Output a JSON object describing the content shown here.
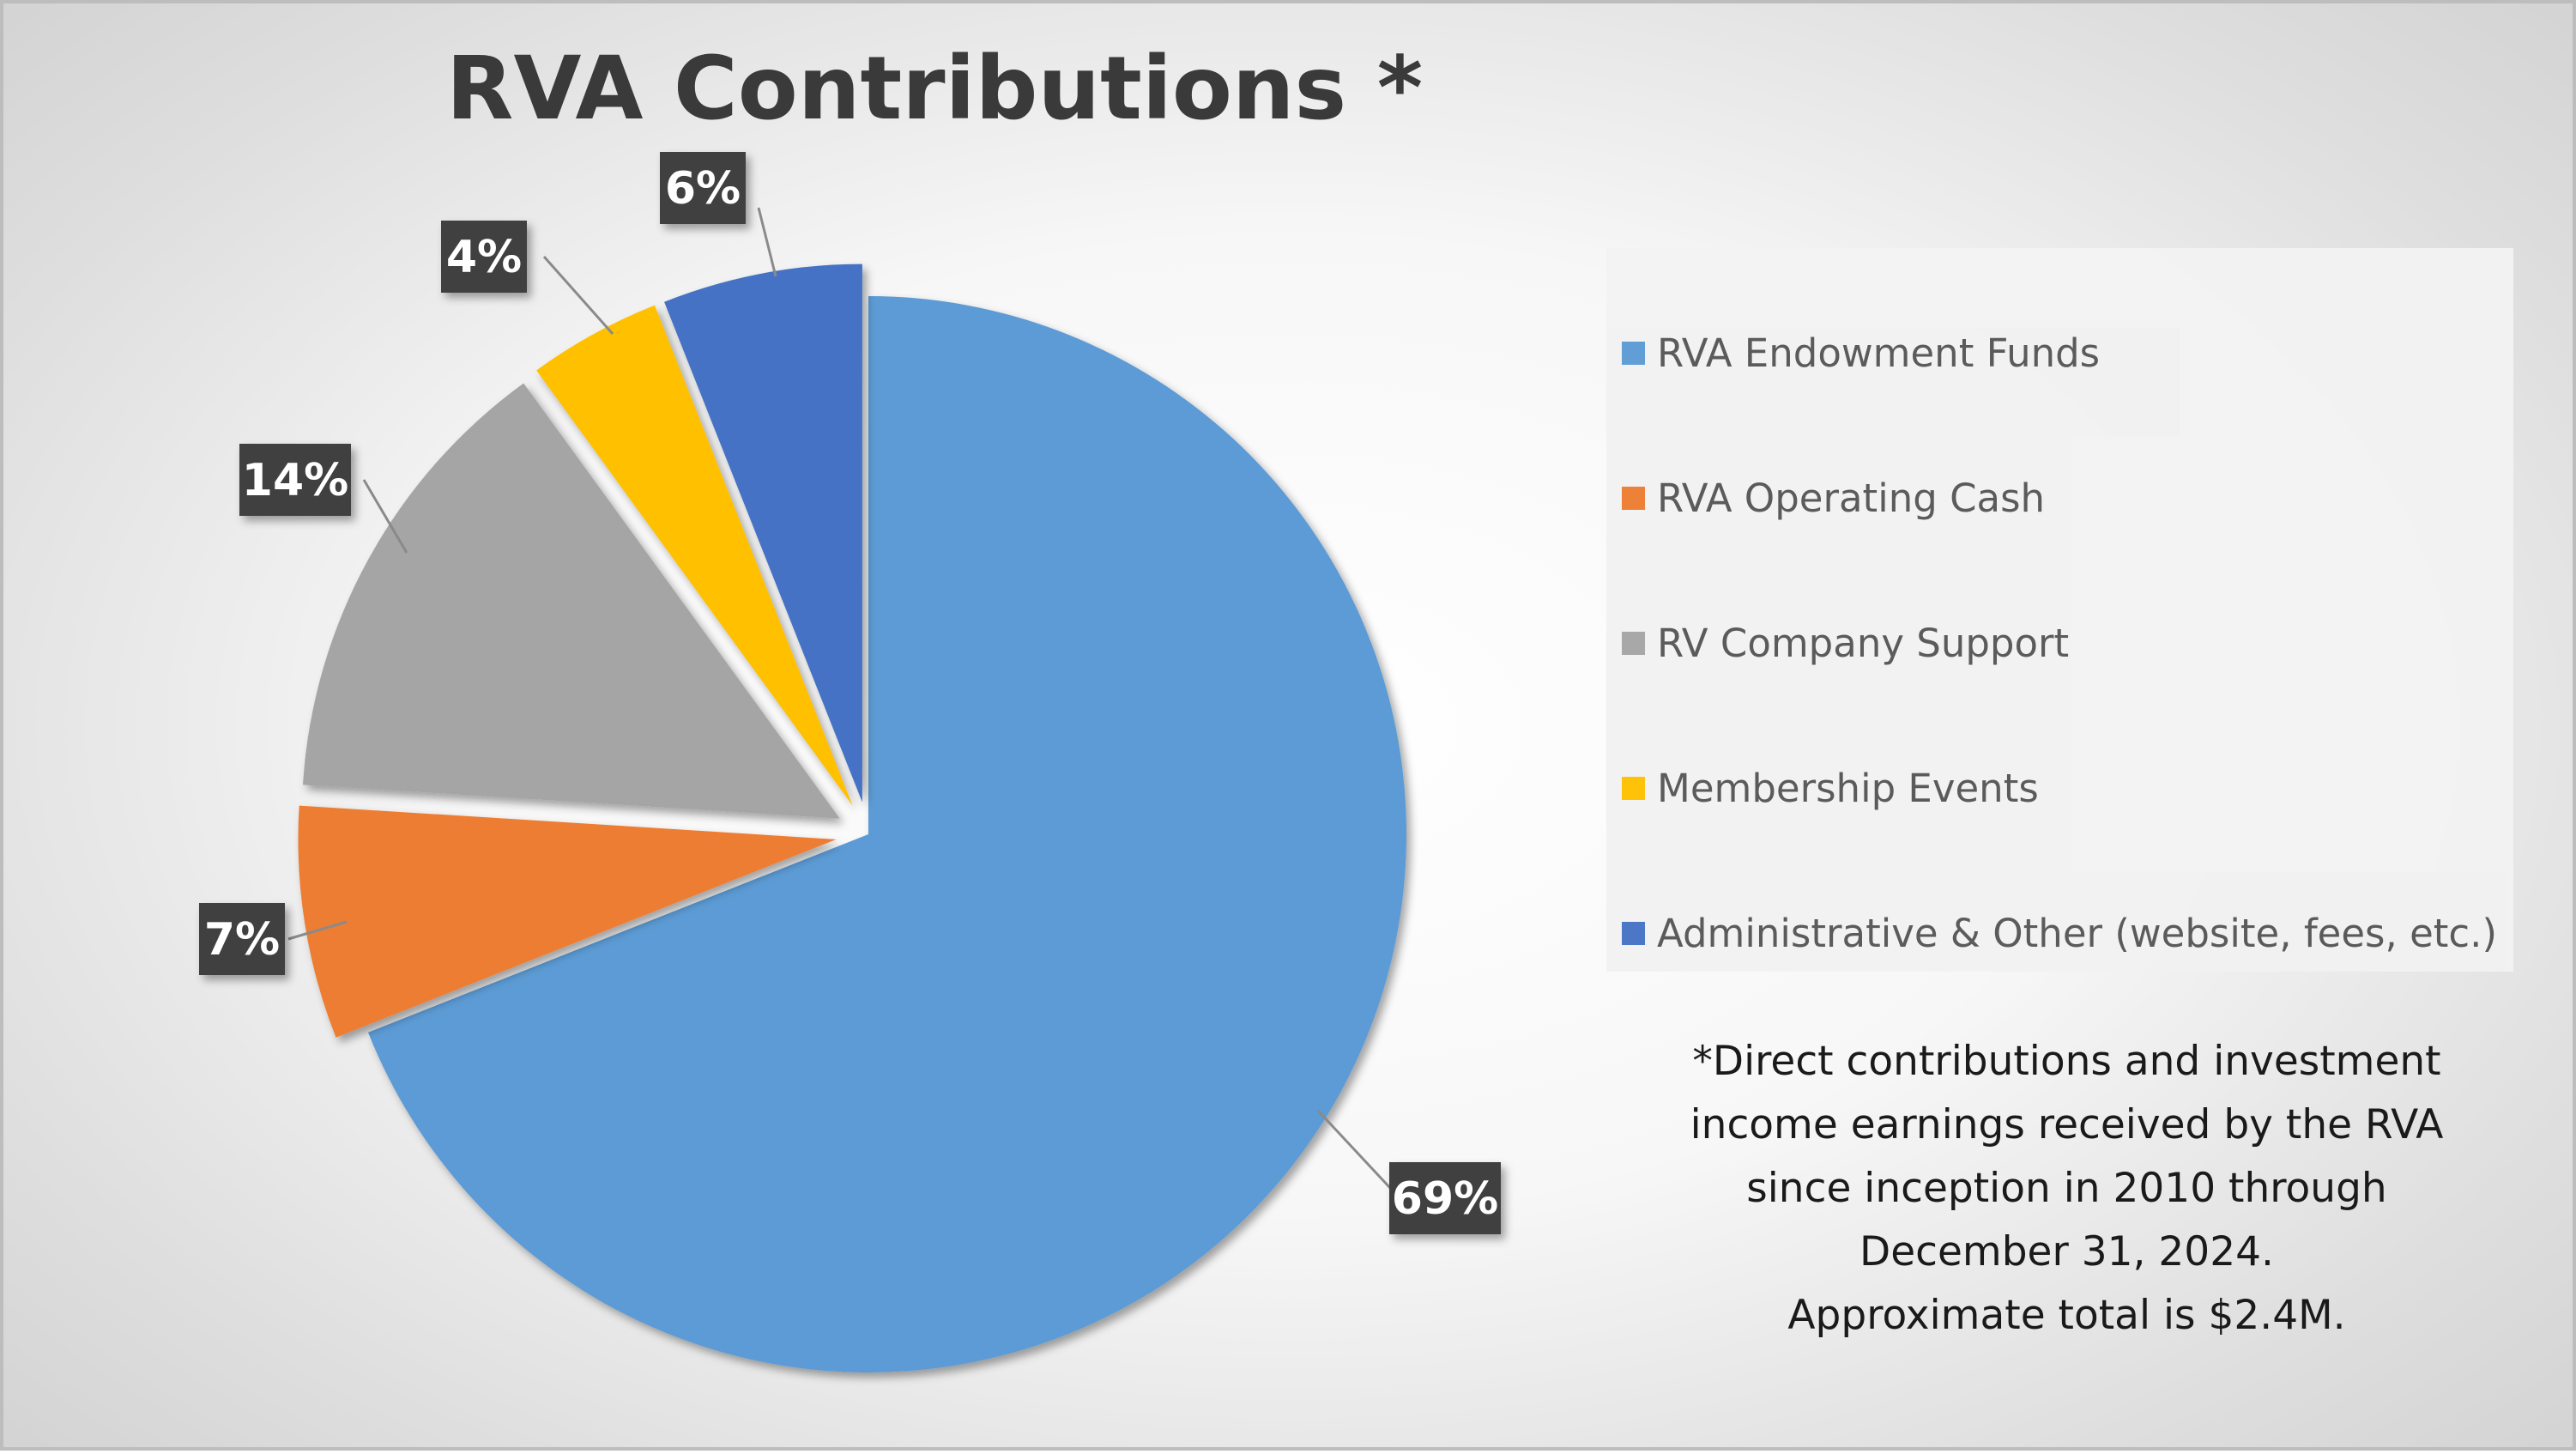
{
  "chart_data": {
    "type": "pie",
    "title": "RVA Contributions *",
    "categories": [
      "RVA Endowment Funds",
      "RVA Operating Cash",
      "RV Company Support",
      "Membership Events",
      "Administrative & Other (website, fees, etc.)"
    ],
    "values": [
      69,
      7,
      14,
      4,
      6
    ],
    "data_labels": [
      "69%",
      "7%",
      "14%",
      "4%",
      "6%"
    ],
    "colors": [
      "#5b9bd5",
      "#ed7d31",
      "#a5a5a5",
      "#ffc000",
      "#4472c4"
    ],
    "exploded": true,
    "legend_position": "right",
    "footnote": [
      "*Direct contributions and investment",
      "income earnings received by the RVA",
      "since inception in 2010 through",
      "December 31, 2024.",
      "Approximate total is $2.4M."
    ]
  }
}
